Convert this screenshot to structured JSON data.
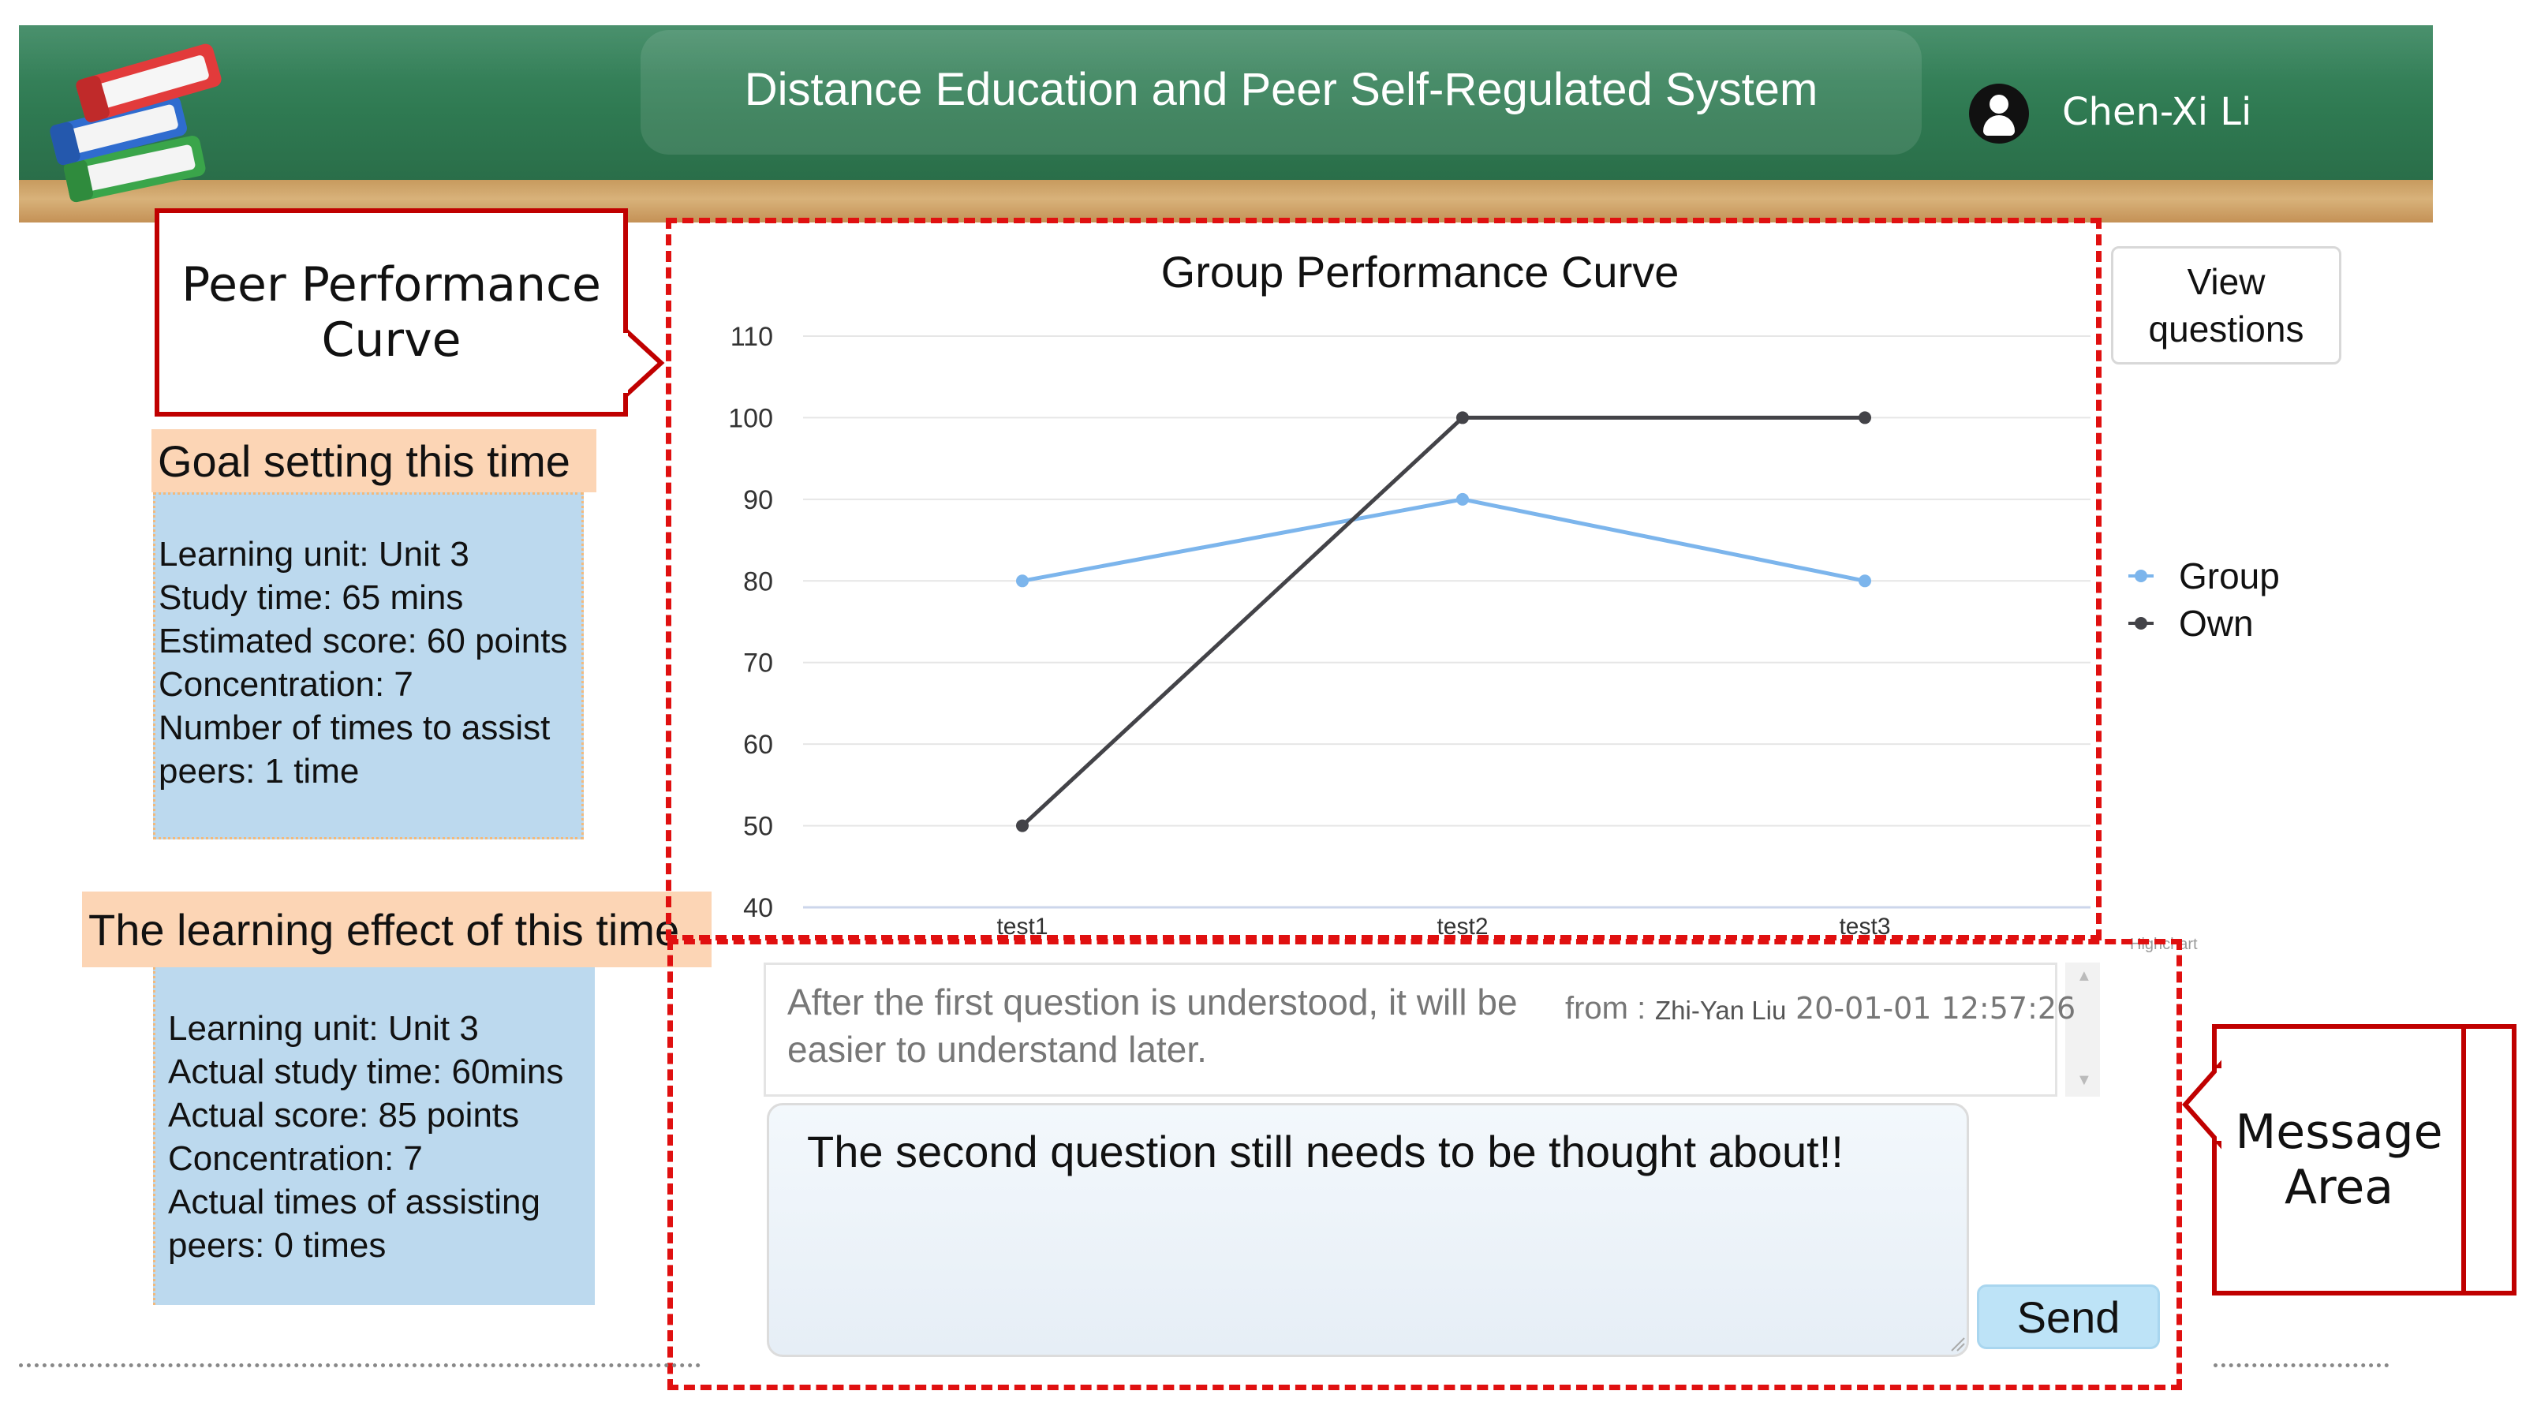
{
  "header": {
    "title": "Distance Education and Peer Self-Regulated System",
    "user_name": "Chen-Xi Li",
    "logo_icon": "books-stack-icon",
    "colors": {
      "board": "#2f7a52",
      "wood": "#c79a5e"
    }
  },
  "callouts": {
    "peer_curve": "Peer Performance Curve",
    "message_area": "Message Area"
  },
  "goal": {
    "heading": "Goal setting this time",
    "lines": [
      "Learning unit: Unit 3",
      "Study time: 65 mins",
      "Estimated score: 60 points",
      "Concentration: 7",
      "Number of times to assist",
      "peers: 1 time"
    ]
  },
  "effect": {
    "heading": "The learning effect of this time",
    "lines": [
      "Learning unit: Unit 3",
      "Actual study time: 60mins",
      "Actual score: 85 points",
      "Concentration: 7",
      "Actual times of assisting",
      "peers: 0 times"
    ]
  },
  "view_button": "View questions",
  "chart_data": {
    "type": "line",
    "title": "Group Performance Curve",
    "categories": [
      "test1",
      "test2",
      "test3"
    ],
    "ylim": [
      40,
      110
    ],
    "yticks": [
      40,
      50,
      60,
      70,
      80,
      90,
      100,
      110
    ],
    "grid": true,
    "legend_position": "right",
    "series": [
      {
        "name": "Group",
        "values": [
          80,
          90,
          80
        ],
        "color": "#7cb5ec"
      },
      {
        "name": "Own",
        "values": [
          50,
          100,
          100
        ],
        "color": "#434348"
      }
    ],
    "credit": "Highchart"
  },
  "messages": {
    "items": [
      {
        "text": "After the first question is understood, it will be easier to understand later.",
        "from_label": "from :",
        "from_name": "Zhi-Yan Liu",
        "time": "20-01-01 12:57:26"
      }
    ],
    "input_value": "The second question still needs to be thought about!!",
    "send_label": "Send"
  }
}
